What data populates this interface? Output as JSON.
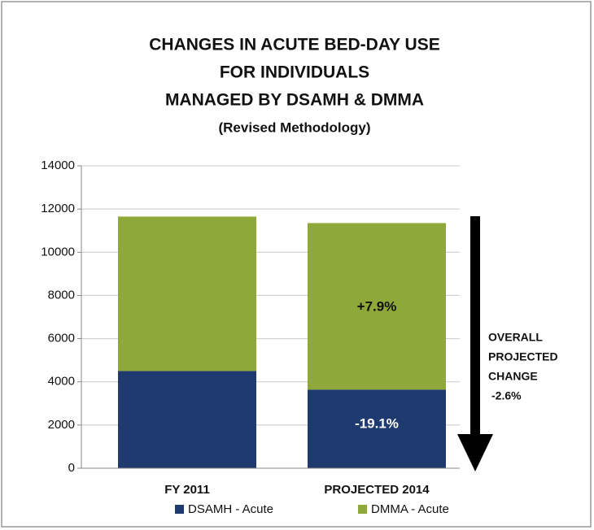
{
  "chart_data": {
    "type": "stacked_bar",
    "title": [
      "CHANGES IN ACUTE BED-DAY USE",
      "FOR INDIVIDUALS",
      "MANAGED BY DSAMH & DMMA"
    ],
    "subtitle": "(Revised Methodology)",
    "categories": [
      "FY 2011",
      "PROJECTED 2014"
    ],
    "series": [
      {
        "name": "DSAMH - Acute",
        "color": "#1f3a6e",
        "values": [
          4500,
          3640
        ]
      },
      {
        "name": "DMMA - Acute",
        "color": "#8fa83a",
        "values": [
          7150,
          7710
        ]
      }
    ],
    "ylim": [
      0,
      14000
    ],
    "yticks": [
      0,
      2000,
      4000,
      6000,
      8000,
      10000,
      12000,
      14000
    ],
    "grid": true,
    "legend": "bottom",
    "annotations": [
      "+7.9%",
      "-19.1%"
    ],
    "overall_note": [
      "OVERALL",
      "PROJECTED",
      "CHANGE",
      "-2.6%"
    ]
  }
}
